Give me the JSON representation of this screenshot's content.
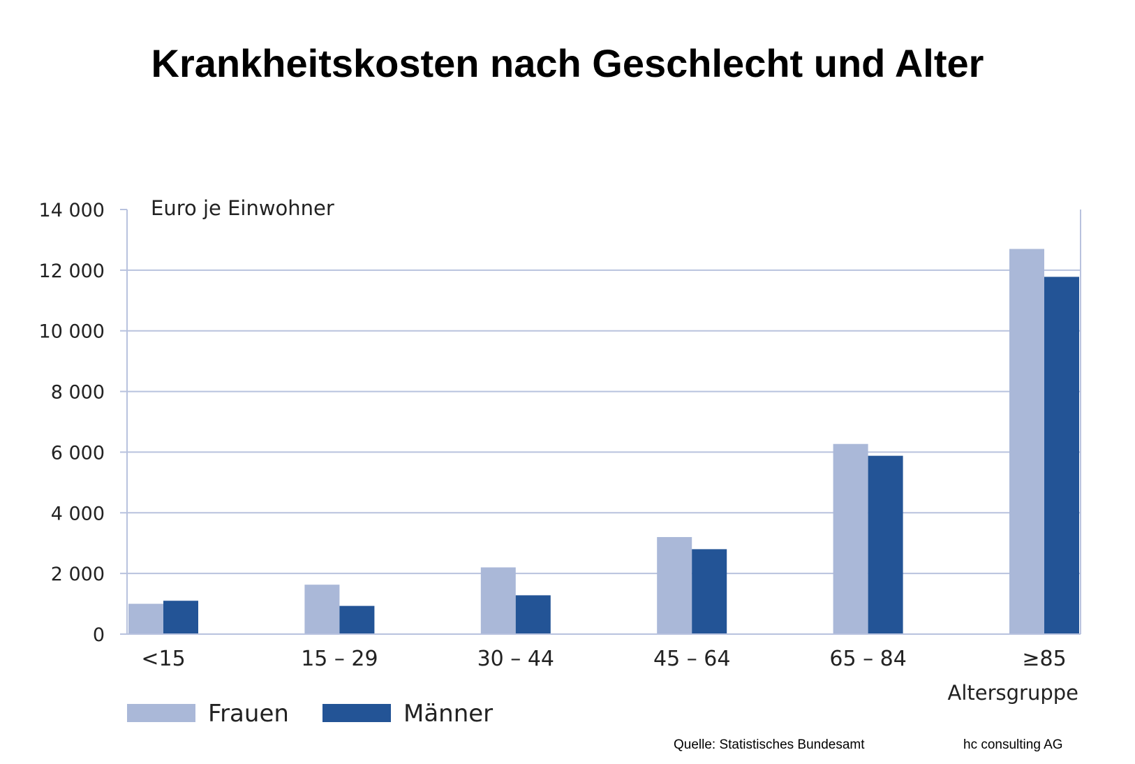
{
  "title": "Krankheitskosten nach Geschlecht und Alter",
  "footer": {
    "source": "Quelle: Statistisches Bundesamt",
    "company": "hc consulting AG"
  },
  "colors": {
    "frauen": "#aab8d8",
    "maenner": "#235496",
    "grid": "#b8c2de",
    "axis": "#b8c2de"
  },
  "chart_data": {
    "type": "bar",
    "ylabel": "Euro je Einwohner",
    "xlabel": "Altersgruppe",
    "ylim": [
      0,
      14000
    ],
    "yticks": [
      0,
      2000,
      4000,
      6000,
      8000,
      10000,
      12000,
      14000
    ],
    "ytick_labels": [
      "0",
      "2 000",
      "4 000",
      "6 000",
      "8 000",
      "10 000",
      "12 000",
      "14 000"
    ],
    "categories": [
      "<15",
      "15 – 29",
      "30 – 44",
      "45 – 64",
      "65 – 84",
      "≥85"
    ],
    "series": [
      {
        "name": "Frauen",
        "values": [
          1000,
          1630,
          2200,
          3200,
          6270,
          12700
        ]
      },
      {
        "name": "Männer",
        "values": [
          1100,
          930,
          1280,
          2800,
          5880,
          11780
        ]
      }
    ],
    "grid": true,
    "legend": "bottom-left"
  }
}
